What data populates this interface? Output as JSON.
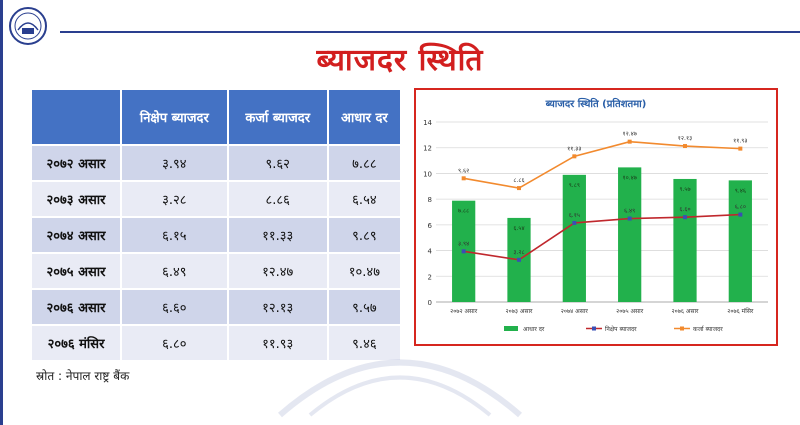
{
  "slide": {
    "title": "ब्याजदर स्थिति",
    "source": "स्रोत : नेपाल राष्ट्र बैंक"
  },
  "table": {
    "headers": [
      "",
      "निक्षेप ब्याजदर",
      "कर्जा ब्याजदर",
      "आधार दर"
    ],
    "rows": [
      {
        "period": "२०७२ असार",
        "deposit": "३.९४",
        "lending": "९.६२",
        "base": "७.८८"
      },
      {
        "period": "२०७३ असार",
        "deposit": "३.२८",
        "lending": "८.८६",
        "base": "६.५४"
      },
      {
        "period": "२०७४ असार",
        "deposit": "६.१५",
        "lending": "११.३३",
        "base": "९.८९"
      },
      {
        "period": "२०७५ असार",
        "deposit": "६.४९",
        "lending": "१२.४७",
        "base": "१०.४७"
      },
      {
        "period": "२०७६ असार",
        "deposit": "६.६०",
        "lending": "१२.१३",
        "base": "९.५७"
      },
      {
        "period": "२०७६ मंसिर",
        "deposit": "६.८०",
        "lending": "११.९३",
        "base": "९.४६"
      }
    ]
  },
  "chart_data": {
    "type": "bar",
    "title": "ब्याजदर स्थिति (प्रतिशतमा)",
    "categories": [
      "२०७२ असार",
      "२०७३ असार",
      "२०७४ असार",
      "२०७५ असार",
      "२०७६ असार",
      "२०७६ मंसिर"
    ],
    "ylim": [
      0,
      14
    ],
    "yticks": [
      0,
      2,
      4,
      6,
      8,
      10,
      12,
      14
    ],
    "grid": true,
    "legend": "bottom",
    "series": [
      {
        "name": "आधार दर",
        "kind": "bar",
        "color": "#22b14c",
        "values": [
          7.88,
          6.54,
          9.89,
          10.47,
          9.57,
          9.46
        ],
        "labels": [
          "७.८८",
          "६.५४",
          "९.८९",
          "१०.४७",
          "९.५७",
          "९.४६"
        ]
      },
      {
        "name": "निक्षेप ब्याजदर",
        "kind": "line",
        "color": "#c0282d",
        "marker": "#3a4fb4",
        "values": [
          3.94,
          3.28,
          6.15,
          6.49,
          6.6,
          6.8
        ],
        "labels": [
          "३.९४",
          "३.२८",
          "६.१५",
          "६.४९",
          "६.६०",
          "६.८०"
        ]
      },
      {
        "name": "कर्जा ब्याजदर",
        "kind": "line",
        "color": "#f28a2e",
        "marker": "#f28a2e",
        "values": [
          9.62,
          8.86,
          11.33,
          12.47,
          12.13,
          11.93
        ],
        "labels": [
          "९.६२",
          "८.८६",
          "११.३३",
          "१२.४७",
          "१२.१३",
          "११.९३"
        ]
      }
    ]
  }
}
